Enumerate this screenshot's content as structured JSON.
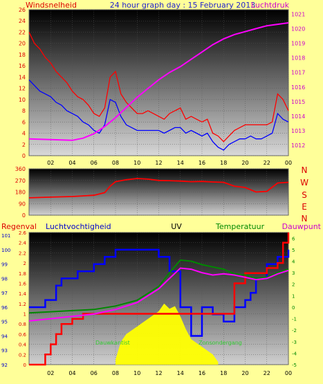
{
  "header": {
    "title": "24 hour graph day : 15 February 2013",
    "left_label": "Windsnelheid",
    "right_label": "Luchtdruk",
    "colors": {
      "left_label": "#dd0000",
      "title": "#2222cc",
      "right_label": "#cc00cc"
    }
  },
  "wind_dir_letters": [
    "N",
    "W",
    "S",
    "E",
    "N"
  ],
  "bottom_labels": {
    "regenval": "Regenval",
    "luchtvochtigheid": "Luchtvochtigheid",
    "uv": "UV",
    "temperatuur": "Temperatuur",
    "dauwpunt": "Dauwpunt",
    "annotation_left": "Dauwkantist",
    "annotation_right": "Zonsondergang"
  },
  "chart_data": [
    {
      "type": "line",
      "name": "wind-and-pressure",
      "x_ticks": [
        "02",
        "04",
        "06",
        "08",
        "10",
        "12",
        "14",
        "16",
        "18",
        "20",
        "22",
        "00"
      ],
      "x_range_hours": [
        0,
        24
      ],
      "left_axis": {
        "label": "Windsnelheid",
        "ticks": [
          0,
          2,
          4,
          6,
          8,
          10,
          12,
          14,
          16,
          18,
          20,
          22,
          24,
          26
        ],
        "range": [
          0,
          26
        ]
      },
      "right_axis": {
        "label": "Luchtdruk",
        "ticks": [
          1012,
          1013,
          1014,
          1015,
          1016,
          1017,
          1018,
          1019,
          1020,
          1021
        ],
        "range": [
          1011.3,
          1021.3
        ]
      },
      "series": [
        {
          "name": "",
          "color": "#ff0000",
          "axis": "left",
          "hours": [
            0,
            0.5,
            1,
            1.5,
            2,
            2.5,
            3,
            3.5,
            4,
            4.5,
            5,
            5.5,
            6,
            6.5,
            7,
            7.5,
            8,
            8.5,
            9,
            9.5,
            10,
            10.5,
            11,
            11.5,
            12,
            12.5,
            13,
            13.5,
            14,
            14.5,
            15,
            15.5,
            16,
            16.5,
            17,
            17.5,
            18,
            18.5,
            19,
            19.5,
            20,
            20.5,
            21,
            21.5,
            22,
            22.5,
            23,
            23.5,
            24
          ],
          "values": [
            22,
            20,
            19,
            17.5,
            16.5,
            15,
            14,
            13,
            11.5,
            10.5,
            10,
            9,
            7.5,
            7,
            8.5,
            14,
            15,
            11,
            9.5,
            8.5,
            7.5,
            7.5,
            8,
            7.5,
            7,
            6.5,
            7.5,
            8,
            8.5,
            6.5,
            7,
            6.5,
            6,
            6.5,
            4,
            3.5,
            2.5,
            3.5,
            4.5,
            5,
            5.5,
            5.5,
            5.5,
            5.5,
            5.5,
            6,
            11,
            10,
            8
          ]
        },
        {
          "name": "",
          "color": "#0000ff",
          "axis": "left",
          "hours": [
            0,
            0.5,
            1,
            1.5,
            2,
            2.5,
            3,
            3.5,
            4,
            4.5,
            5,
            5.5,
            6,
            6.5,
            7,
            7.5,
            8,
            8.5,
            9,
            9.5,
            10,
            10.5,
            11,
            11.5,
            12,
            12.5,
            13,
            13.5,
            14,
            14.5,
            15,
            15.5,
            16,
            16.5,
            17,
            17.5,
            18,
            18.5,
            19,
            19.5,
            20,
            20.5,
            21,
            21.5,
            22,
            22.5,
            23,
            23.5,
            24
          ],
          "values": [
            13.5,
            12.5,
            11.5,
            11,
            10.5,
            9.5,
            9,
            8,
            7.5,
            7,
            6,
            5.5,
            4.5,
            4,
            5.5,
            10,
            9.5,
            7,
            5.5,
            5,
            4.5,
            4.5,
            4.5,
            4.5,
            4.5,
            4,
            4.5,
            5,
            5,
            4,
            4.5,
            4,
            3.5,
            4,
            2.5,
            1.5,
            1,
            2,
            2.5,
            3,
            3,
            3.5,
            3,
            3,
            3.5,
            4,
            7.5,
            6.5,
            6
          ]
        },
        {
          "name": "",
          "color": "#ff00ff",
          "axis": "right",
          "hours": [
            0,
            2,
            4,
            5,
            6,
            7,
            8,
            9,
            10,
            11,
            12,
            13,
            14,
            15,
            16,
            17,
            18,
            19,
            20,
            21,
            22,
            23,
            24
          ],
          "values": [
            1012.45,
            1012.4,
            1012.35,
            1012.5,
            1012.8,
            1013.3,
            1013.9,
            1014.6,
            1015.3,
            1015.9,
            1016.5,
            1017.0,
            1017.4,
            1017.9,
            1018.4,
            1018.9,
            1019.3,
            1019.6,
            1019.8,
            1020.0,
            1020.2,
            1020.3,
            1020.4
          ]
        }
      ]
    },
    {
      "type": "line",
      "name": "wind-direction",
      "left_axis": {
        "ticks": [
          0,
          90,
          180,
          270,
          360
        ],
        "range": [
          0,
          360
        ]
      },
      "series": [
        {
          "name": "",
          "color": "#ff0000",
          "hours": [
            0,
            2,
            4,
            5,
            6,
            7,
            7.5,
            8,
            9,
            10,
            11,
            12,
            13,
            14,
            15,
            16,
            17,
            18,
            19,
            20,
            21,
            22,
            23,
            24
          ],
          "values": [
            135,
            140,
            145,
            150,
            155,
            175,
            225,
            260,
            275,
            285,
            280,
            270,
            268,
            265,
            260,
            262,
            258,
            255,
            225,
            215,
            180,
            185,
            250,
            255
          ]
        }
      ]
    },
    {
      "type": "line",
      "name": "rain-humidity-uv-temperature-dewpoint",
      "axis_humidity": {
        "label": "Luchtvochtigheid",
        "ticks": [
          92,
          93,
          94,
          95,
          96,
          97,
          98,
          99,
          100,
          101
        ],
        "range": [
          92,
          101.2
        ]
      },
      "axis_rain": {
        "label": "Regenval",
        "ticks": [
          0,
          0.2,
          0.4,
          0.6,
          0.8,
          1,
          1.2,
          1.4,
          1.6,
          1.8,
          2,
          2.2,
          2.4,
          2.6
        ],
        "range": [
          0,
          2.6
        ]
      },
      "axis_temperature": {
        "label": "Temperatuur",
        "ticks": [
          -5,
          -4,
          -3,
          -2,
          -1,
          0,
          1,
          2,
          3,
          4,
          5,
          6
        ],
        "range": [
          -5,
          6.5
        ]
      },
      "series": [
        {
          "name": "Luchtvochtigheid",
          "color": "#0000ff",
          "axis": "humidity",
          "step": true,
          "hours": [
            0,
            1.5,
            2.5,
            3,
            4.5,
            6,
            7,
            8,
            11.5,
            12,
            13,
            14,
            15,
            16,
            17,
            18,
            19,
            20,
            20.5,
            21,
            22,
            23,
            24
          ],
          "values": [
            96,
            96.5,
            97.5,
            98,
            98.5,
            99,
            99.5,
            100,
            100,
            99.5,
            98.5,
            96,
            94,
            96,
            95.5,
            95,
            96,
            96.5,
            97,
            98,
            99,
            99.5,
            100
          ]
        },
        {
          "name": "Regenval",
          "color": "#ff0000",
          "axis": "rain",
          "step": true,
          "hours": [
            0,
            1,
            1.5,
            2,
            2.5,
            3,
            4,
            5,
            6,
            8,
            9,
            10,
            12,
            14,
            16,
            18,
            19,
            20,
            22,
            23,
            23.5,
            24
          ],
          "values": [
            0,
            0,
            0.2,
            0.4,
            0.6,
            0.8,
            0.9,
            1.0,
            1.0,
            1.0,
            1.0,
            1.0,
            1.0,
            1.0,
            1.0,
            1.0,
            1.6,
            1.8,
            1.9,
            2.0,
            2.4,
            2.6
          ]
        },
        {
          "name": "Temperatuur",
          "color": "#008800",
          "axis": "temperature",
          "hours": [
            0,
            2,
            4,
            6,
            8,
            10,
            12,
            13,
            14,
            15,
            16,
            17,
            18,
            19,
            20,
            21,
            22,
            23,
            24
          ],
          "values": [
            -0.5,
            -0.4,
            -0.3,
            -0.2,
            0.1,
            0.6,
            1.8,
            3.0,
            4.1,
            4.0,
            3.7,
            3.5,
            3.3,
            2.9,
            2.8,
            2.5,
            2.6,
            3.0,
            3.3
          ]
        },
        {
          "name": "Dauwpunt",
          "color": "#ff00ff",
          "axis": "temperature",
          "hours": [
            0,
            2,
            4,
            6,
            8,
            10,
            12,
            13,
            14,
            15,
            16,
            17,
            18,
            19,
            20,
            21,
            22,
            23,
            24
          ],
          "values": [
            -1.2,
            -1.0,
            -0.8,
            -0.6,
            -0.2,
            0.4,
            1.6,
            2.5,
            3.4,
            3.3,
            3.0,
            2.8,
            2.9,
            2.8,
            2.6,
            2.4,
            2.5,
            2.9,
            3.2
          ]
        },
        {
          "name": "UV",
          "color": "#ffff00",
          "axis": "rain",
          "area": true,
          "hours": [
            8,
            8.5,
            9,
            10,
            11,
            12,
            12.5,
            13,
            13.5,
            14,
            14.5,
            15,
            16,
            17,
            17.5
          ],
          "values": [
            0.1,
            0.45,
            0.6,
            0.75,
            0.9,
            1.05,
            1.2,
            1.1,
            1.15,
            0.95,
            0.7,
            0.5,
            0.35,
            0.2,
            0.05
          ]
        }
      ]
    }
  ]
}
